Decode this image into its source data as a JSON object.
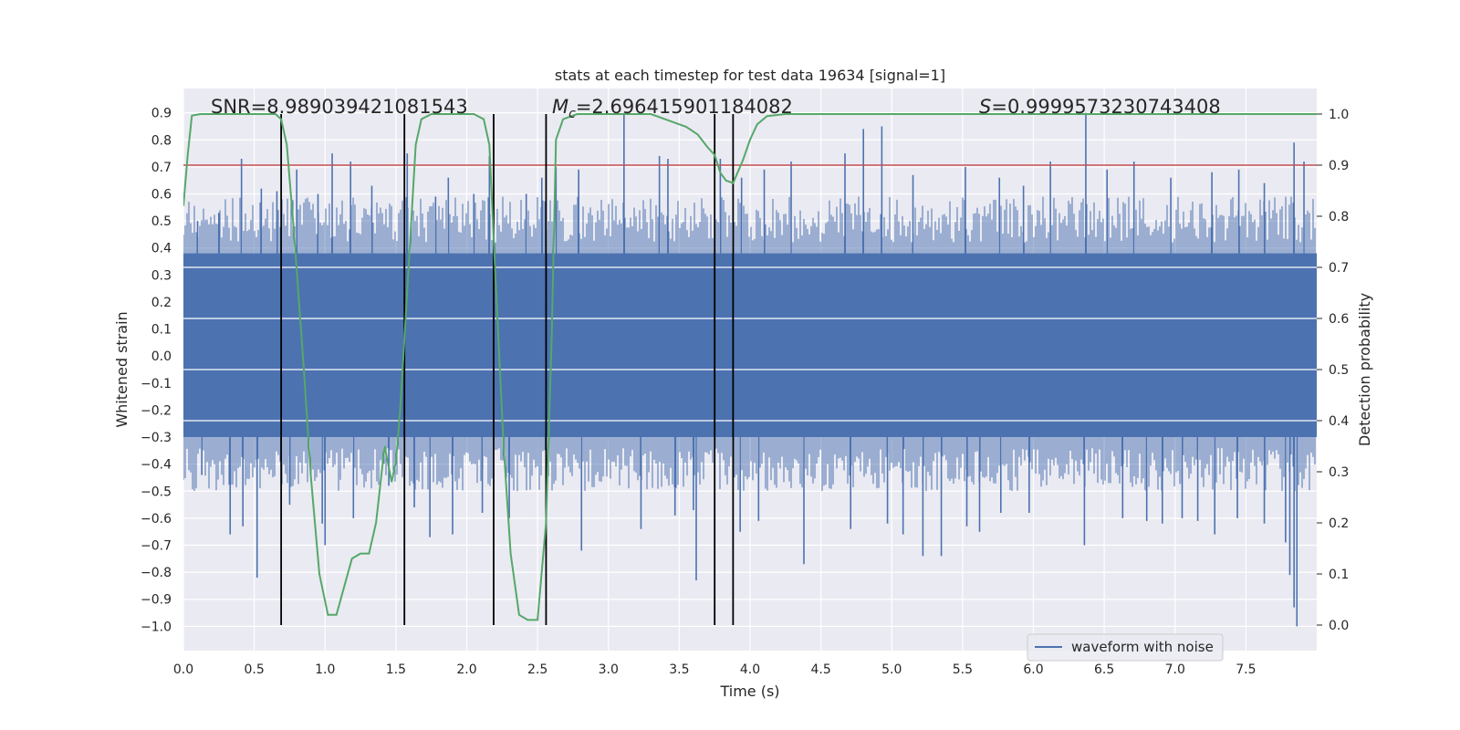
{
  "chart_data": {
    "type": "line",
    "title": "stats at each timestep for test data 19634 [signal=1]",
    "xlabel": "Time (s)",
    "ylabel": "Whitened strain",
    "y2label": "Detection probability",
    "xlim": [
      0.0,
      8.0
    ],
    "ylim": [
      -1.09,
      0.99
    ],
    "y2lim": [
      -0.05,
      1.05
    ],
    "x_ticks": [
      "0.0",
      "0.5",
      "1.0",
      "1.5",
      "2.0",
      "2.5",
      "3.0",
      "3.5",
      "4.0",
      "4.5",
      "5.0",
      "5.5",
      "6.0",
      "6.5",
      "7.0",
      "7.5"
    ],
    "y_ticks": [
      "0.9",
      "0.8",
      "0.7",
      "0.6",
      "0.5",
      "0.4",
      "0.3",
      "0.2",
      "0.1",
      "0.0",
      "−0.1",
      "−0.2",
      "−0.3",
      "−0.4",
      "−0.5",
      "−0.6",
      "−0.7",
      "−0.8",
      "−0.9",
      "−1.0"
    ],
    "y2_ticks": [
      "1.0",
      "0.9",
      "0.8",
      "0.7",
      "0.6",
      "0.5",
      "0.4",
      "0.3",
      "0.2",
      "0.1",
      "0.0"
    ],
    "annotations": {
      "snr": "SNR=8.989039421081543",
      "mc_symbol": "M",
      "mc_sub": "c",
      "mc_value": "=2.696415901184082",
      "s_symbol": "S",
      "s_value": "=0.9999573230743408"
    },
    "legend": {
      "label": "waveform with noise",
      "location": "lower-right"
    },
    "threshold": {
      "axis": "right",
      "value": 0.9,
      "color": "#c44e52"
    },
    "markers": [
      0.69,
      1.56,
      2.19,
      2.56,
      3.75,
      3.88
    ],
    "waveform": {
      "name": "waveform with noise",
      "color": "#4c72b0",
      "band_upper": 0.38,
      "band_lower": -0.3,
      "peaks": [
        [
          0.1,
          0.5
        ],
        [
          0.25,
          0.53
        ],
        [
          0.41,
          0.73
        ],
        [
          0.55,
          0.62
        ],
        [
          0.66,
          0.61
        ],
        [
          0.8,
          0.69
        ],
        [
          0.95,
          0.6
        ],
        [
          1.05,
          0.75
        ],
        [
          1.18,
          0.72
        ],
        [
          1.33,
          0.63
        ],
        [
          1.58,
          0.75
        ],
        [
          1.78,
          0.59
        ],
        [
          1.87,
          0.66
        ],
        [
          2.05,
          0.6
        ],
        [
          2.16,
          0.74
        ],
        [
          2.42,
          0.6
        ],
        [
          2.53,
          0.66
        ],
        [
          2.63,
          0.7
        ],
        [
          2.79,
          0.69
        ],
        [
          3.11,
          0.9
        ],
        [
          3.36,
          0.74
        ],
        [
          3.42,
          0.73
        ],
        [
          3.79,
          0.73
        ],
        [
          3.94,
          0.66
        ],
        [
          4.1,
          0.69
        ],
        [
          4.29,
          0.72
        ],
        [
          4.67,
          0.75
        ],
        [
          4.8,
          0.84
        ],
        [
          4.93,
          0.85
        ],
        [
          5.15,
          0.67
        ],
        [
          5.52,
          0.7
        ],
        [
          5.76,
          0.66
        ],
        [
          5.93,
          0.63
        ],
        [
          6.12,
          0.72
        ],
        [
          6.37,
          0.9
        ],
        [
          6.52,
          0.69
        ],
        [
          6.71,
          0.72
        ],
        [
          6.97,
          0.66
        ],
        [
          7.26,
          0.68
        ],
        [
          7.45,
          0.69
        ],
        [
          7.63,
          0.64
        ],
        [
          7.84,
          0.79
        ],
        [
          7.91,
          0.72
        ]
      ],
      "troughs": [
        [
          0.13,
          -0.44
        ],
        [
          0.33,
          -0.66
        ],
        [
          0.42,
          -0.63
        ],
        [
          0.52,
          -0.82
        ],
        [
          0.75,
          -0.55
        ],
        [
          0.98,
          -0.62
        ],
        [
          1.0,
          -0.7
        ],
        [
          1.2,
          -0.6
        ],
        [
          1.45,
          -0.48
        ],
        [
          1.63,
          -0.56
        ],
        [
          1.74,
          -0.67
        ],
        [
          1.9,
          -0.66
        ],
        [
          2.11,
          -0.58
        ],
        [
          2.3,
          -0.6
        ],
        [
          2.56,
          -0.56
        ],
        [
          2.81,
          -0.72
        ],
        [
          3.23,
          -0.64
        ],
        [
          3.47,
          -0.59
        ],
        [
          3.6,
          -0.57
        ],
        [
          3.62,
          -0.83
        ],
        [
          3.93,
          -0.65
        ],
        [
          4.06,
          -0.61
        ],
        [
          4.38,
          -0.77
        ],
        [
          4.71,
          -0.64
        ],
        [
          4.97,
          -0.62
        ],
        [
          5.08,
          -0.66
        ],
        [
          5.22,
          -0.74
        ],
        [
          5.35,
          -0.74
        ],
        [
          5.53,
          -0.63
        ],
        [
          5.62,
          -0.65
        ],
        [
          5.77,
          -0.58
        ],
        [
          5.97,
          -0.58
        ],
        [
          6.36,
          -0.7
        ],
        [
          6.63,
          -0.6
        ],
        [
          6.8,
          -0.61
        ],
        [
          6.91,
          -0.62
        ],
        [
          7.05,
          -0.6
        ],
        [
          7.16,
          -0.61
        ],
        [
          7.28,
          -0.66
        ],
        [
          7.44,
          -0.6
        ],
        [
          7.63,
          -0.62
        ],
        [
          7.78,
          -0.69
        ],
        [
          7.81,
          -0.81
        ],
        [
          7.84,
          -0.93
        ],
        [
          7.86,
          -1.0
        ]
      ]
    },
    "probability": {
      "color": "#55a868",
      "x": [
        0.0,
        0.03,
        0.06,
        0.12,
        0.2,
        0.3,
        0.4,
        0.5,
        0.6,
        0.65,
        0.69,
        0.73,
        0.78,
        0.85,
        0.9,
        0.96,
        1.02,
        1.08,
        1.13,
        1.19,
        1.25,
        1.31,
        1.36,
        1.42,
        1.47,
        1.5,
        1.53,
        1.56,
        1.6,
        1.64,
        1.68,
        1.75,
        1.85,
        1.95,
        2.05,
        2.12,
        2.16,
        2.2,
        2.26,
        2.31,
        2.37,
        2.43,
        2.5,
        2.56,
        2.6,
        2.63,
        2.68,
        2.78,
        2.9,
        3.1,
        3.3,
        3.45,
        3.55,
        3.63,
        3.7,
        3.75,
        3.79,
        3.83,
        3.88,
        3.95,
        4.0,
        4.05,
        4.12,
        4.25,
        4.5,
        5.0,
        6.0,
        7.0,
        8.0
      ],
      "y": [
        0.82,
        0.92,
        0.997,
        1.0,
        1.0,
        1.0,
        1.0,
        1.0,
        1.0,
        1.0,
        0.99,
        0.94,
        0.77,
        0.5,
        0.29,
        0.1,
        0.02,
        0.02,
        0.07,
        0.13,
        0.14,
        0.14,
        0.2,
        0.35,
        0.28,
        0.32,
        0.42,
        0.56,
        0.75,
        0.94,
        0.99,
        1.0,
        1.0,
        1.0,
        1.0,
        0.99,
        0.94,
        0.7,
        0.35,
        0.14,
        0.02,
        0.01,
        0.01,
        0.2,
        0.57,
        0.95,
        0.99,
        1.0,
        1.0,
        1.0,
        1.0,
        0.985,
        0.975,
        0.96,
        0.935,
        0.92,
        0.885,
        0.87,
        0.865,
        0.91,
        0.95,
        0.98,
        0.996,
        1.0,
        1.0,
        1.0,
        1.0,
        1.0,
        1.0
      ]
    }
  }
}
